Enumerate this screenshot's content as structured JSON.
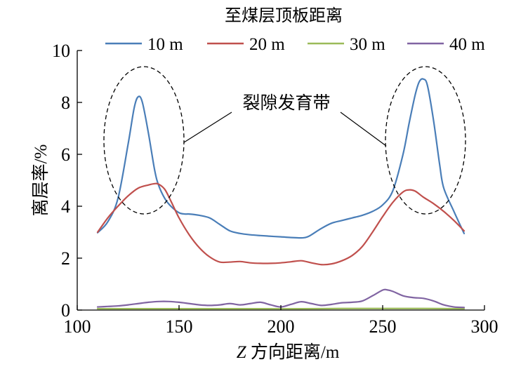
{
  "chart_data": {
    "type": "line",
    "title": "至煤层顶板距离",
    "xlabel_italic": "Z",
    "xlabel_rest": " 方向距离/m",
    "ylabel": "离层率/%",
    "xlim": [
      100,
      300
    ],
    "ylim": [
      0,
      10
    ],
    "xticks": [
      100,
      150,
      200,
      250,
      300
    ],
    "yticks": [
      0,
      2,
      4,
      6,
      8,
      10
    ],
    "legend_position": "top",
    "annotation": "裂隙发育带",
    "series": [
      {
        "name": "10 m",
        "color": "#4a7eb8",
        "x": [
          110,
          115,
          120,
          125,
          128,
          130,
          132,
          135,
          138,
          140,
          143,
          146,
          150,
          153,
          155,
          160,
          165,
          170,
          175,
          180,
          185,
          190,
          200,
          210,
          213,
          215,
          220,
          225,
          230,
          235,
          240,
          245,
          250,
          255,
          260,
          263,
          266,
          268,
          270,
          272,
          275,
          278,
          280,
          285,
          290
        ],
        "y": [
          2.98,
          3.4,
          4.3,
          6.4,
          7.8,
          8.22,
          8.0,
          6.8,
          5.4,
          4.8,
          4.3,
          4.0,
          3.75,
          3.7,
          3.7,
          3.65,
          3.55,
          3.3,
          3.05,
          2.95,
          2.9,
          2.87,
          2.82,
          2.78,
          2.82,
          2.9,
          3.15,
          3.35,
          3.45,
          3.55,
          3.65,
          3.8,
          4.05,
          4.6,
          6.0,
          7.2,
          8.3,
          8.8,
          8.9,
          8.65,
          7.3,
          5.6,
          4.7,
          3.8,
          2.95
        ]
      },
      {
        "name": "20 m",
        "color": "#c0504d",
        "x": [
          110,
          115,
          120,
          125,
          130,
          135,
          138,
          140,
          143,
          146,
          150,
          155,
          160,
          165,
          170,
          175,
          180,
          185,
          190,
          195,
          200,
          205,
          210,
          215,
          220,
          225,
          230,
          235,
          240,
          245,
          250,
          255,
          260,
          263,
          266,
          270,
          275,
          280,
          285,
          290
        ],
        "y": [
          3.0,
          3.55,
          4.0,
          4.4,
          4.7,
          4.82,
          4.87,
          4.85,
          4.65,
          4.2,
          3.55,
          2.9,
          2.4,
          2.05,
          1.85,
          1.85,
          1.87,
          1.82,
          1.8,
          1.8,
          1.82,
          1.86,
          1.9,
          1.82,
          1.75,
          1.78,
          1.9,
          2.1,
          2.45,
          3.0,
          3.6,
          4.15,
          4.55,
          4.63,
          4.58,
          4.35,
          4.1,
          3.8,
          3.45,
          3.05
        ]
      },
      {
        "name": "30 m",
        "color": "#9bbb59",
        "x": [
          110,
          130,
          150,
          170,
          190,
          210,
          230,
          250,
          270,
          290
        ],
        "y": [
          0.05,
          0.05,
          0.05,
          0.05,
          0.05,
          0.05,
          0.06,
          0.06,
          0.06,
          0.05
        ]
      },
      {
        "name": "40 m",
        "color": "#8064a2",
        "x": [
          110,
          115,
          120,
          125,
          130,
          135,
          140,
          145,
          150,
          155,
          160,
          165,
          170,
          175,
          180,
          185,
          190,
          195,
          200,
          205,
          210,
          215,
          220,
          225,
          230,
          235,
          240,
          245,
          250,
          252,
          255,
          260,
          265,
          270,
          275,
          280,
          285,
          290
        ],
        "y": [
          0.12,
          0.14,
          0.16,
          0.2,
          0.25,
          0.3,
          0.33,
          0.33,
          0.3,
          0.25,
          0.2,
          0.18,
          0.2,
          0.25,
          0.2,
          0.25,
          0.3,
          0.2,
          0.12,
          0.22,
          0.32,
          0.25,
          0.18,
          0.22,
          0.28,
          0.3,
          0.35,
          0.55,
          0.77,
          0.78,
          0.72,
          0.55,
          0.48,
          0.45,
          0.35,
          0.2,
          0.12,
          0.1
        ]
      }
    ]
  }
}
